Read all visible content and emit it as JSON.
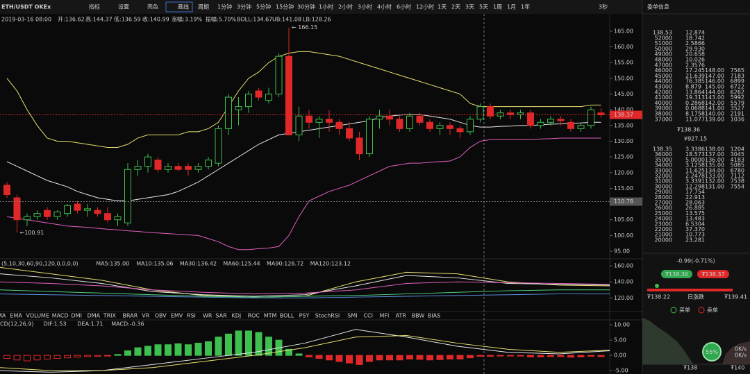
{
  "toolbar": {
    "symbol": "ETH/USDT OKEx",
    "tools": [
      "指标",
      "设置",
      "亮色",
      "画线"
    ],
    "period_label": "周期",
    "periods": [
      "1分钟",
      "3分钟",
      "5分钟",
      "15分钟",
      "30分钟",
      "1小时",
      "2小时",
      "3小时",
      "4小时",
      "6小时",
      "12小时",
      "1天",
      "2天",
      "3天",
      "5天",
      "1周",
      "1月",
      "1年"
    ],
    "refresh": "3秒",
    "panel_title": "委单信息"
  },
  "info": [
    {
      "text": "2019-03-16 08:00",
      "color": "#cfcfcf"
    },
    {
      "text": "开:136.62",
      "color": "#cfcfcf"
    },
    {
      "text": "高:144.37",
      "color": "#cfcfcf"
    },
    {
      "text": "低:136.59",
      "color": "#cfcfcf"
    },
    {
      "text": "收:140.99",
      "color": "#cfcfcf"
    },
    {
      "text": "涨幅:3.19%",
      "color": "#3fbf4f"
    },
    {
      "text": "振幅:5.70%",
      "color": "#cfcfcf"
    },
    {
      "text": "BOLL:134.67",
      "color": "#e8e8e8"
    },
    {
      "text": "UB:141.08",
      "color": "#e8e070"
    },
    {
      "text": "LB:128.26",
      "color": "#e060c0"
    }
  ],
  "main": {
    "ylim": [
      92.8,
      170.5
    ],
    "yticks": [
      {
        "value": 165,
        "label": "165.00"
      },
      {
        "value": 160,
        "label": "160.00"
      },
      {
        "value": 155,
        "label": "155.00"
      },
      {
        "value": 150,
        "label": "150.00"
      },
      {
        "value": 145,
        "label": "145.00"
      },
      {
        "value": 140,
        "label": "140.00"
      },
      {
        "value": 135,
        "label": "135.00"
      },
      {
        "value": 130,
        "label": "130.00"
      },
      {
        "value": 125,
        "label": "125.00"
      },
      {
        "value": 120,
        "label": "120.00"
      },
      {
        "value": 115,
        "label": "115.00"
      },
      {
        "value": 110,
        "label": "110.00"
      },
      {
        "value": 105,
        "label": "105.00"
      },
      {
        "value": 100,
        "label": "100.00"
      },
      {
        "value": 95,
        "label": "95.00"
      }
    ],
    "last_price": {
      "value": 138.37,
      "label": "138.37"
    },
    "marker": {
      "value": 110.78,
      "label": "110.78"
    },
    "high_note": {
      "value": 166.15,
      "label": "← 166.15"
    },
    "low_note": {
      "value": 100.91,
      "label": "←100.91"
    },
    "up_color": "#3fbf4f",
    "down_color": "#e02828",
    "candles": [
      [
        116,
        117,
        112,
        113
      ],
      [
        112,
        113,
        100.91,
        105
      ],
      [
        105,
        107,
        103,
        106
      ],
      [
        106,
        108,
        105,
        107
      ],
      [
        108,
        109,
        105,
        106
      ],
      [
        106,
        108,
        105,
        107.5
      ],
      [
        107,
        110,
        106,
        109.5
      ],
      [
        110,
        111,
        107,
        108
      ],
      [
        108,
        110,
        106,
        108.5
      ],
      [
        108,
        109,
        106,
        107
      ],
      [
        107,
        109,
        104,
        105
      ],
      [
        105,
        107,
        103,
        106
      ],
      [
        104,
        123,
        103,
        121
      ],
      [
        121,
        124,
        119,
        122
      ],
      [
        122,
        126,
        120,
        125
      ],
      [
        124,
        125,
        120,
        121
      ],
      [
        121,
        123,
        120,
        122
      ],
      [
        122,
        123,
        120.5,
        121
      ],
      [
        122,
        123,
        119,
        121
      ],
      [
        121,
        123,
        120,
        122
      ],
      [
        122,
        125,
        121,
        124
      ],
      [
        123,
        135,
        122,
        134
      ],
      [
        134,
        145,
        132,
        144
      ],
      [
        140,
        144,
        135,
        141
      ],
      [
        141,
        146,
        139,
        145
      ],
      [
        146,
        147,
        143,
        144
      ],
      [
        143,
        147,
        142,
        145
      ],
      [
        145,
        158,
        144,
        157
      ],
      [
        157,
        166.15,
        132,
        132
      ],
      [
        132,
        141,
        130,
        138
      ],
      [
        138,
        140,
        134,
        136
      ],
      [
        136,
        138,
        131,
        137
      ],
      [
        137,
        140,
        133,
        136
      ],
      [
        136,
        137,
        132,
        134
      ],
      [
        134,
        136,
        130,
        131
      ],
      [
        131,
        133,
        124,
        126
      ],
      [
        126,
        138,
        125,
        137
      ],
      [
        137,
        140,
        134,
        138
      ],
      [
        138,
        140,
        135,
        137
      ],
      [
        137,
        138,
        133,
        134
      ],
      [
        134,
        139,
        133,
        138
      ],
      [
        138,
        139,
        135,
        136
      ],
      [
        136,
        137,
        133,
        134
      ],
      [
        134,
        136,
        132,
        135
      ],
      [
        135,
        136,
        132,
        134
      ],
      [
        134,
        135,
        131,
        133
      ],
      [
        133,
        138,
        132,
        137
      ],
      [
        137,
        142,
        136,
        141
      ],
      [
        141,
        142,
        137,
        138
      ],
      [
        138,
        140,
        137,
        139
      ],
      [
        139,
        140,
        137,
        138.5
      ],
      [
        138.5,
        140,
        137,
        139
      ],
      [
        139,
        140,
        134,
        135
      ],
      [
        135,
        137,
        134,
        136
      ],
      [
        136,
        138,
        135,
        137
      ],
      [
        137,
        138,
        135,
        136.5
      ],
      [
        136,
        137,
        133,
        134
      ],
      [
        134,
        136,
        133,
        135
      ],
      [
        135,
        141,
        134,
        140
      ],
      [
        139,
        140.5,
        137.5,
        138.4
      ]
    ],
    "boll": [
      {
        "color": "#e8e070",
        "values": [
          150,
          146,
          140,
          135,
          131,
          130,
          130,
          129.5,
          129,
          128.5,
          128,
          128,
          129,
          131,
          132,
          132,
          132,
          132,
          133,
          133,
          134,
          136,
          141,
          146,
          150,
          152,
          155,
          157,
          158,
          158.5,
          158.5,
          158,
          157.5,
          157,
          156,
          155,
          154,
          153,
          152,
          151,
          150,
          149,
          148,
          147,
          146,
          145,
          142,
          141,
          141,
          141,
          141,
          141,
          141,
          141,
          141,
          141,
          141,
          141,
          141.5,
          141.5
        ]
      },
      {
        "color": "#e8e8e8",
        "values": [
          123.5,
          122,
          120.5,
          119,
          117.5,
          116.5,
          115.5,
          114,
          113,
          112,
          111.5,
          111,
          111,
          111.5,
          112,
          112.5,
          113,
          114,
          115.5,
          117,
          119,
          121,
          123,
          125,
          127,
          129,
          130.5,
          132,
          132.5,
          133,
          133.5,
          134,
          134.5,
          135,
          135.5,
          136,
          136.5,
          137.5,
          138,
          138.3,
          138.5,
          138.5,
          138,
          137.5,
          137,
          136,
          135,
          134.5,
          134.5,
          134.7,
          134.8,
          135,
          135,
          135.2,
          135.4,
          135.5,
          135.7,
          135.8,
          136,
          136
        ]
      },
      {
        "color": "#e060c0",
        "values": [
          106,
          105.5,
          105,
          104.5,
          104,
          103.5,
          103,
          102.8,
          102.6,
          102.3,
          102,
          101.8,
          101.5,
          101.3,
          101,
          100.8,
          100.6,
          100.4,
          100.2,
          100,
          99,
          98,
          96.5,
          95.5,
          95.5,
          95.8,
          96,
          96.5,
          100,
          106,
          111,
          112.5,
          114,
          115,
          116,
          117.5,
          119,
          120.5,
          122,
          122.5,
          123,
          123,
          123.3,
          123.5,
          123.7,
          125,
          128,
          130,
          130.5,
          130.5,
          130.5,
          130.5,
          130.5,
          130.7,
          130.8,
          131,
          131,
          131,
          131,
          131
        ]
      }
    ]
  },
  "ma_panel": {
    "legend": [
      {
        "text": "(5,10,30,60,90,120,0,0,0,0)",
        "color": "#cfcfcf"
      },
      {
        "text": "MA5:135.00",
        "color": "#e8e8e8"
      },
      {
        "text": "MA10:135.06",
        "color": "#e8e070"
      },
      {
        "text": "MA30:136.42",
        "color": "#e060c0"
      },
      {
        "text": "MA60:125.44",
        "color": "#4fd07f"
      },
      {
        "text": "MA90:126.72",
        "color": "#e8e070"
      },
      {
        "text": "MA120:123.12",
        "color": "#e060c0"
      }
    ],
    "ylim": [
      103,
      167
    ],
    "yticks": [
      {
        "value": 160,
        "label": "160.00"
      },
      {
        "value": 140,
        "label": "140.00"
      },
      {
        "value": 120,
        "label": "120.00"
      }
    ],
    "series": [
      {
        "color": "#e8e070",
        "values": [
          158,
          150,
          142,
          130,
          123,
          121,
          122,
          140,
          152,
          150,
          140,
          136,
          135
        ]
      },
      {
        "color": "#e8e8e8",
        "values": [
          150,
          145,
          138,
          128,
          124,
          122,
          124,
          135,
          148,
          145,
          138,
          137,
          136
        ]
      },
      {
        "color": "#e060c0",
        "values": [
          140,
          138,
          135,
          130,
          127,
          125,
          126,
          130,
          138,
          140,
          139,
          138,
          137
        ]
      },
      {
        "color": "#4fd07f",
        "values": [
          130,
          128,
          126,
          124,
          122,
          121,
          122,
          123,
          125,
          127,
          129,
          130,
          130
        ]
      },
      {
        "color": "#5a8fe0",
        "values": [
          125,
          124,
          123,
          122,
          121,
          120,
          120,
          121,
          122,
          123,
          124,
          125,
          125
        ]
      }
    ]
  },
  "tabs": [
    "MA",
    "EMA",
    "VOLUME",
    "MACD",
    "DMI",
    "DMA",
    "TRIX",
    "BRAR",
    "VR",
    "OBV",
    "EMV",
    "RSI",
    "WR",
    "SAR",
    "KDJ",
    "ROC",
    "MTM",
    "BOLL",
    "PSY",
    "StochRSI",
    "SMI",
    "CCI",
    "MFI",
    "ATR",
    "BBW",
    "BIAS"
  ],
  "macd": {
    "legend": [
      {
        "text": "CD(12,26,9)",
        "color": "#cfcfcf"
      },
      {
        "text": "DIF:1.53",
        "color": "#e8e8e8"
      },
      {
        "text": "DEA:1.71",
        "color": "#e8e070"
      },
      {
        "text": "MACD:-0.36",
        "color": "#e060c0"
      }
    ],
    "ylim": [
      -6.1,
      11.4
    ],
    "yticks": [
      {
        "value": 10,
        "label": "10.00"
      },
      {
        "value": 5,
        "label": "5.00"
      },
      {
        "value": 0,
        "label": "0.00"
      },
      {
        "value": -5,
        "label": "-5.00"
      }
    ],
    "hist": [
      -1,
      -1.5,
      -1.8,
      -1.5,
      -1.2,
      -1,
      -0.8,
      -0.6,
      -0.4,
      -0.3,
      -0.2,
      0.3,
      1.5,
      2.5,
      3,
      3.5,
      3.5,
      3.8,
      3.5,
      4,
      4.5,
      6,
      7,
      8,
      8,
      7.5,
      6,
      5,
      2,
      0.5,
      -0.5,
      -1,
      -1.5,
      -2,
      -2.5,
      -3,
      -2,
      -1.5,
      -1.5,
      -1.5,
      -1.2,
      -1.3,
      -1.5,
      -1.4,
      -1.2,
      -1.2,
      -0.8,
      -0.3,
      -0.3,
      -0.2,
      -0.2,
      -0.2,
      -0.5,
      -0.5,
      -0.4,
      -0.4,
      -0.6,
      -0.5,
      -0.3,
      -0.4
    ],
    "lines": [
      {
        "color": "#e8e8e8",
        "values": [
          -5,
          -5.5,
          -5,
          -3,
          -1,
          1,
          4,
          8.5,
          6,
          3,
          1,
          0.5,
          1.5
        ]
      },
      {
        "color": "#e8e070",
        "values": [
          -4,
          -5,
          -5,
          -4,
          -2,
          0,
          2.5,
          6,
          6.5,
          4,
          2,
          1,
          1.7
        ]
      }
    ]
  },
  "orderbook": {
    "asks": [
      [
        "138.53",
        "12.874"
      ],
      [
        "52000",
        "18.742"
      ],
      [
        "51000",
        "2.5866"
      ],
      [
        "50000",
        "29.930"
      ],
      [
        "49000",
        "20.658"
      ],
      [
        "48000",
        "10.026"
      ],
      [
        "47000",
        "2.3576"
      ],
      [
        "46000",
        "17.245",
        "148.00",
        "7565"
      ],
      [
        "45000",
        "21.639",
        "147.00",
        "7183"
      ],
      [
        "44000",
        "76.385",
        "146.00",
        "6899"
      ],
      [
        "43000",
        "8.879",
        "145.00",
        "6722"
      ],
      [
        "42000",
        "13.864",
        "144.00",
        "6262"
      ],
      [
        "41000",
        "19.313",
        "143.00",
        "5992"
      ],
      [
        "40000",
        "0.2868",
        "142.00",
        "5579"
      ],
      [
        "39000",
        "0.0688",
        "141.00",
        "3527"
      ],
      [
        "38000",
        "8.1758",
        "140.00",
        "2191"
      ],
      [
        "37000",
        "11.077",
        "139.00",
        "1036"
      ]
    ],
    "price": "₮138.36",
    "cny": "¥927.15",
    "bids": [
      [
        "138.35",
        "3.3386",
        "138.00",
        "1204"
      ],
      [
        "36000",
        "18.573",
        "137.00",
        "3045"
      ],
      [
        "35000",
        "5.0000",
        "136.00",
        "4183"
      ],
      [
        "34000",
        "3.1258",
        "135.00",
        "5085"
      ],
      [
        "33000",
        "11.625",
        "134.00",
        "6780"
      ],
      [
        "32000",
        "2.2478",
        "133.00",
        "7112"
      ],
      [
        "31000",
        "3.3391",
        "132.00",
        "7538"
      ],
      [
        "30000",
        "12.298",
        "131.00",
        "7554"
      ],
      [
        "29000",
        "17.754"
      ],
      [
        "28000",
        "22.913"
      ],
      [
        "27000",
        "28.063"
      ],
      [
        "26000",
        "26.885"
      ],
      [
        "25000",
        "13.575"
      ],
      [
        "24000",
        "13.483"
      ],
      [
        "23000",
        "6.5304"
      ],
      [
        "22000",
        "37.370"
      ],
      [
        "21000",
        "10.773"
      ],
      [
        "20000",
        "23.281"
      ]
    ]
  },
  "ticker": {
    "change": "-0.99(-0.71%)",
    "buy_price": "₮138.36",
    "sell_price": "₮138.37",
    "low": "₮138.22",
    "range_label": "日涨跌",
    "high": "₮139.41",
    "buy_label": "买单",
    "sell_label": "卖单",
    "depth_pct": "55%",
    "speeds": [
      "0K/s",
      "0K/s"
    ],
    "depth_low": "₮138",
    "depth_high": "₮140"
  }
}
